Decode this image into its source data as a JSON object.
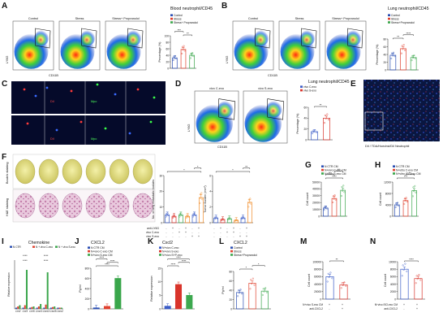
{
  "panels": {
    "a": {
      "letter": "A",
      "flow_labels": [
        "Control",
        "Stress",
        "Stress+ Propranolol"
      ],
      "ylabel": "LY6G",
      "xlabel": "CD11B"
    },
    "b": {
      "letter": "B",
      "flow_labels": [
        "Control",
        "Stress",
        "Stress+ Propranolol"
      ],
      "ylabel": "LY6G",
      "xlabel": "CD11B"
    },
    "c": {
      "letter": "C",
      "channel_labels": [
        "DiI",
        "Mpo",
        "DiI",
        "Mpo"
      ]
    },
    "d": {
      "letter": "D",
      "flow_labels": [
        "vivo C-exo",
        "vivo S-exo"
      ],
      "ylabel": "LY6G",
      "xlabel": "CD11B"
    },
    "e": {
      "letter": "E",
      "legend": "DiI / TDA/Hoechst/DiI Neutrophil"
    },
    "f": {
      "letter": "F",
      "row_labels": [
        "Bouin's staining",
        "H&E staining"
      ],
      "treat_rows": [
        "anti-LY6G",
        "vivo C-exo",
        "vivo S-exo"
      ],
      "treat_signs": [
        [
          "-",
          "+",
          "-",
          "+",
          "-",
          "+"
        ],
        [
          "-",
          "-",
          "+",
          "+",
          "-",
          "-"
        ],
        [
          "-",
          "-",
          "-",
          "-",
          "+",
          "+"
        ]
      ]
    },
    "g": {
      "letter": "G"
    },
    "h": {
      "letter": "H"
    },
    "i": {
      "letter": "I"
    },
    "j": {
      "letter": "J"
    },
    "k": {
      "letter": "K"
    },
    "l": {
      "letter": "L"
    },
    "m": {
      "letter": "M",
      "rows": [
        "N+vivo S-exo CM",
        "anti-CXCL2"
      ],
      "signs": [
        [
          "+",
          "+"
        ],
        [
          "-",
          "+"
        ]
      ]
    },
    "n": {
      "letter": "N",
      "rows": [
        "N+vivo ISO-exo CM",
        "anti-CXCL2"
      ],
      "signs": [
        [
          "+",
          "+"
        ],
        [
          "-",
          "+"
        ]
      ]
    }
  },
  "colors": {
    "control": "#2b4fb3",
    "stress": "#e0412e",
    "propranolol": "#3aa64b",
    "red": "#d9342b",
    "blue": "#3b5cc7",
    "green": "#3da84f",
    "orange": "#f08a24"
  },
  "chart_data": [
    {
      "panel": "A",
      "type": "bar",
      "title": "Blood neutrophil/CD45",
      "legend": [
        "Control",
        "Stress",
        "Stress+ Propranolol"
      ],
      "categories": [
        "Control",
        "Stress",
        "Stress+ Propranolol"
      ],
      "values": [
        32,
        58,
        40
      ],
      "ylabel": "Percentage (%)",
      "ylim": [
        0,
        100
      ],
      "yticks": [
        "0",
        "20",
        "40",
        "60",
        "80",
        "100"
      ],
      "significance": [
        "**",
        "***"
      ]
    },
    {
      "panel": "B",
      "type": "bar",
      "title": "Lung neutrophil/CD45",
      "legend": [
        "Control",
        "Stress",
        "Stress+Propranolol"
      ],
      "categories": [
        "Control",
        "Stress",
        "Stress+Propranolol"
      ],
      "values": [
        38,
        55,
        32
      ],
      "ylabel": "Percentage (%)",
      "ylim": [
        0,
        80
      ],
      "yticks": [
        "0",
        "20",
        "40",
        "60",
        "80"
      ],
      "significance": [
        "**",
        "****"
      ]
    },
    {
      "panel": "D",
      "type": "bar",
      "title": "Lung neutrophil/CD45",
      "legend": [
        "vivo C-exo",
        "vivo S-exo"
      ],
      "categories": [
        "vivo C-exo",
        "vivo S-exo"
      ],
      "values": [
        15,
        40
      ],
      "ylabel": "Percentage (%)",
      "ylim": [
        0,
        60
      ],
      "yticks": [
        "0",
        "20",
        "40",
        "60"
      ],
      "significance": [
        "**"
      ]
    },
    {
      "panel": "F1",
      "type": "bar",
      "title": "",
      "categories": [
        "1",
        "2",
        "3",
        "4",
        "5",
        "6"
      ],
      "values": [
        5,
        4,
        5,
        4,
        5,
        16
      ],
      "ylabel": "No. of lung metastatic nodules",
      "ylim": [
        0,
        30
      ],
      "yticks": [
        "0",
        "10",
        "20",
        "30"
      ],
      "significance": [
        "*",
        "*"
      ]
    },
    {
      "panel": "F2",
      "type": "bar",
      "title": "",
      "categories": [
        "1",
        "2",
        "3",
        "4",
        "5",
        "6"
      ],
      "values": [
        0.6,
        0.4,
        0.5,
        0.3,
        0.6,
        2.6
      ],
      "ylabel": "Tumor Burden (mm²)",
      "ylim": [
        0,
        6
      ],
      "yticks": [
        "0",
        "2",
        "4",
        "6"
      ],
      "significance": [
        "*",
        "**"
      ]
    },
    {
      "panel": "G",
      "type": "bar",
      "title": "",
      "legend": [
        "N CTR CM",
        "N+vivo C-exo CM",
        "N+vivo S-exo CM"
      ],
      "categories": [
        "N CTR CM",
        "N+vivo C-exo CM",
        "N+vivo S-exo CM"
      ],
      "values": [
        12000,
        26000,
        38000
      ],
      "ylabel": "Cell count",
      "ylim": [
        0,
        50000
      ],
      "yticks": [
        "0",
        "10000",
        "20000",
        "30000",
        "40000",
        "50000"
      ],
      "significance": [
        "****",
        "***",
        "**"
      ]
    },
    {
      "panel": "H",
      "type": "bar",
      "title": "",
      "legend": [
        "N CTR CM",
        "N+vitro C-exo CM",
        "N+vitro ISO-exo CM"
      ],
      "categories": [
        "N CTR CM",
        "N+vitro C-exo CM",
        "N+vitro ISO-exo CM"
      ],
      "values": [
        4000,
        5500,
        9000
      ],
      "ylabel": "Cell count",
      "ylim": [
        0,
        12000
      ],
      "yticks": [
        "0",
        "4000",
        "8000",
        "12000"
      ],
      "significance": [
        "***",
        "**"
      ]
    },
    {
      "panel": "I",
      "type": "bar",
      "title": "Chemokine",
      "legend": [
        "N CTR",
        "N + vivo C-exo",
        "N + vivo S-exo"
      ],
      "categories": [
        "Ccl2",
        "Ccl3",
        "Ccl5",
        "Cxcl1",
        "Cxcl2",
        "Cxcl3",
        "Cxcr2"
      ],
      "series": [
        {
          "name": "N CTR",
          "values": [
            1,
            1,
            1,
            1,
            1,
            1,
            1
          ]
        },
        {
          "name": "N + vivo C-exo",
          "values": [
            2,
            3,
            1.5,
            2,
            3.5,
            1.5,
            1
          ]
        },
        {
          "name": "N + vivo S-exo",
          "values": [
            3,
            32,
            2,
            4,
            30,
            2,
            1
          ]
        }
      ],
      "ylabel": "Relative expression",
      "ylim": [
        0,
        40
      ],
      "significance": [
        "****",
        "****",
        "****",
        "****"
      ]
    },
    {
      "panel": "J",
      "type": "bar",
      "title": "CXCL2",
      "legend": [
        "N CTR CM",
        "N+vivo C-exo CM",
        "N+vivo S-exo CM"
      ],
      "categories": [
        "N CTR CM",
        "N+vivo C-exo CM",
        "N+vivo S-exo CM"
      ],
      "values": [
        20,
        50,
        600
      ],
      "ylabel": "Pg/ml",
      "ylim": [
        0,
        800
      ],
      "yticks": [
        "0",
        "200",
        "400",
        "600",
        "800"
      ],
      "significance": [
        "****",
        "****",
        "****"
      ]
    },
    {
      "panel": "K",
      "type": "bar",
      "title": "Cxcl2",
      "legend": [
        "N+vivo C-exo",
        "N+vivo S-exo",
        "N+vivo S+P-exo"
      ],
      "categories": [
        "N+vivo C-exo",
        "N+vivo S-exo",
        "N+vivo S+P-exo"
      ],
      "values": [
        1,
        9,
        5
      ],
      "ylabel": "Relative expression",
      "ylim": [
        0,
        15
      ],
      "yticks": [
        "0",
        "5",
        "10",
        "15"
      ],
      "significance": [
        "****",
        "****",
        "****"
      ]
    },
    {
      "panel": "L",
      "type": "bar",
      "title": "CXCL2",
      "legend": [
        "Control",
        "Stress",
        "Stress+Propranolol"
      ],
      "categories": [
        "Control",
        "Stress",
        "Stress+Propranolol"
      ],
      "values": [
        35,
        55,
        38
      ],
      "ylabel": "Pg/ml",
      "ylim": [
        0,
        80
      ],
      "yticks": [
        "0",
        "20",
        "40",
        "60",
        "80"
      ],
      "significance": [
        "*",
        "*"
      ]
    },
    {
      "panel": "M",
      "type": "bar",
      "title": "",
      "categories": [
        "N+vivo S-exo CM",
        "N+vivo S-exo CM + anti-CXCL2"
      ],
      "values": [
        60000,
        38000
      ],
      "ylabel": "Cell count",
      "ylim": [
        0,
        100000
      ],
      "yticks": [
        "0",
        "20000",
        "40000",
        "60000",
        "80000",
        "100000"
      ],
      "significance": [
        "**"
      ]
    },
    {
      "panel": "N",
      "type": "bar",
      "title": "",
      "categories": [
        "N+vivo ISO-exo CM",
        "N+vivo ISO-exo CM + anti-CXCL2"
      ],
      "values": [
        8000,
        5500
      ],
      "ylabel": "Cell count",
      "ylim": [
        0,
        10000
      ],
      "yticks": [
        "0",
        "2000",
        "4000",
        "6000",
        "8000",
        "10000"
      ],
      "significance": [
        "****"
      ]
    }
  ]
}
